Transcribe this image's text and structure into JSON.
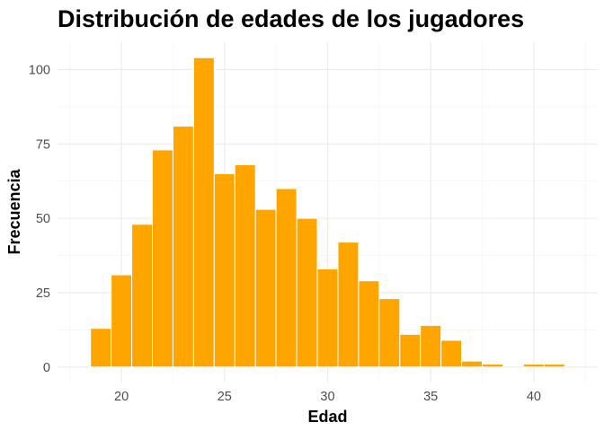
{
  "chart_data": {
    "type": "bar",
    "title": "Distribución de edades de los jugadores",
    "xlabel": "Edad",
    "ylabel": "Frecuencia",
    "bin_width": 1,
    "bins": [
      {
        "start": 18.5,
        "end": 19.5,
        "count": 13
      },
      {
        "start": 19.5,
        "end": 20.5,
        "count": 31
      },
      {
        "start": 20.5,
        "end": 21.5,
        "count": 48
      },
      {
        "start": 21.5,
        "end": 22.5,
        "count": 73
      },
      {
        "start": 22.5,
        "end": 23.5,
        "count": 81
      },
      {
        "start": 23.5,
        "end": 24.5,
        "count": 104
      },
      {
        "start": 24.5,
        "end": 25.5,
        "count": 65
      },
      {
        "start": 25.5,
        "end": 26.5,
        "count": 68
      },
      {
        "start": 26.5,
        "end": 27.5,
        "count": 53
      },
      {
        "start": 27.5,
        "end": 28.5,
        "count": 60
      },
      {
        "start": 28.5,
        "end": 29.5,
        "count": 50
      },
      {
        "start": 29.5,
        "end": 30.5,
        "count": 33
      },
      {
        "start": 30.5,
        "end": 31.5,
        "count": 42
      },
      {
        "start": 31.5,
        "end": 32.5,
        "count": 29
      },
      {
        "start": 32.5,
        "end": 33.5,
        "count": 23
      },
      {
        "start": 33.5,
        "end": 34.5,
        "count": 11
      },
      {
        "start": 34.5,
        "end": 35.5,
        "count": 14
      },
      {
        "start": 35.5,
        "end": 36.5,
        "count": 9
      },
      {
        "start": 36.5,
        "end": 37.5,
        "count": 2
      },
      {
        "start": 37.5,
        "end": 38.5,
        "count": 1
      },
      {
        "start": 38.5,
        "end": 39.5,
        "count": 0
      },
      {
        "start": 39.5,
        "end": 40.5,
        "count": 1
      },
      {
        "start": 40.5,
        "end": 41.5,
        "count": 1
      }
    ],
    "xlim": [
      16.9,
      43.1
    ],
    "ylim": [
      -5.2,
      109.2
    ],
    "x_ticks": [
      20,
      25,
      30,
      35,
      40
    ],
    "y_ticks": [
      0,
      25,
      50,
      75,
      100
    ],
    "bar_color": "#FFA500",
    "bar_outline_color": "#FFFFFF",
    "grid": true,
    "legend": "none"
  }
}
